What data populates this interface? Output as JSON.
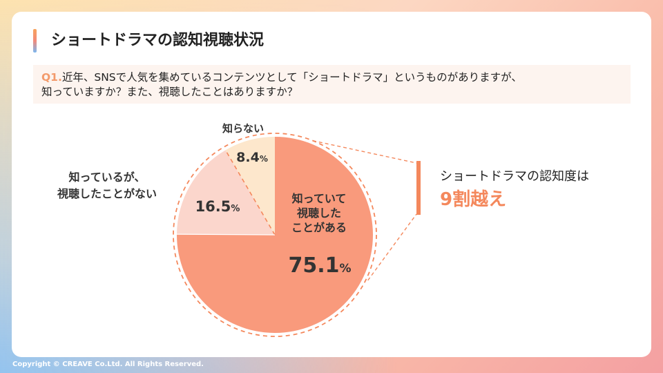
{
  "slide": {
    "title": "ショートドラマの認知視聴状況",
    "question_num": "Q1.",
    "question_line1": "近年、SNSで人気を集めているコンテンツとして「ショートドラマ」というものがありますが、",
    "question_line2": "知っていますか？また、視聴したことはありますか？",
    "conclusion_line1": "ショートドラマの認知度は",
    "conclusion_line2": "9割越え",
    "footer": "Copyright © CREAVE Co.Ltd. All Rights Reserved."
  },
  "colors": {
    "accent": "#f4885c",
    "slice_main": "#f99a7c",
    "slice_mid": "#fbd6cc",
    "slice_small": "#fde7cc",
    "dash": "#f4885c"
  },
  "chart_data": {
    "type": "pie",
    "slices": [
      {
        "label_lines": [
          "知っていて",
          "視聴した",
          "ことがある"
        ],
        "value": 75.1,
        "value_text": "75.1",
        "unit": "%"
      },
      {
        "label_lines": [
          "知っているが、",
          "視聴したことがない"
        ],
        "value": 16.5,
        "value_text": "16.5",
        "unit": "%"
      },
      {
        "label_lines": [
          "知らない"
        ],
        "value": 8.4,
        "value_text": "8.4",
        "unit": "%"
      }
    ]
  }
}
